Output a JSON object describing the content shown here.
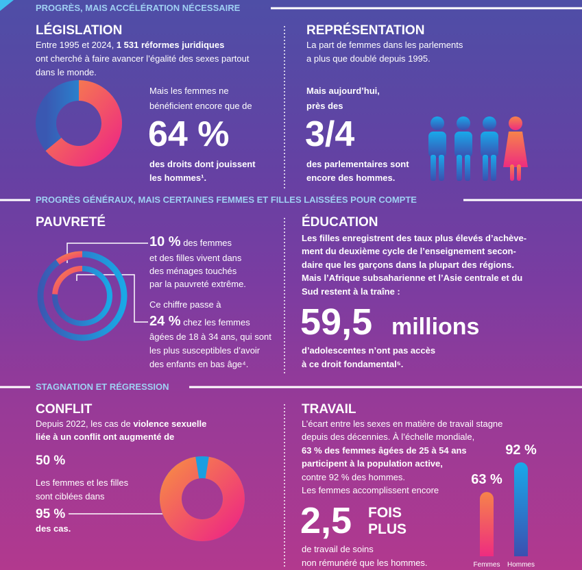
{
  "sections": [
    {
      "heading": "PROGRÈS, MAIS ACCÉLÉRATION NÉCESSAIRE"
    },
    {
      "heading": "PROGRÈS GÉNÉRAUX, MAIS CERTAINES FEMMES ET FILLES LAISSÉES POUR COMPTE"
    },
    {
      "heading": "STAGNATION ET RÉGRESSION"
    }
  ],
  "legislation": {
    "title": "LÉGISLATION",
    "intro": [
      "Entre 1995 et 2024, ",
      "1 531 réformes juridiques",
      "ont cherché à faire avancer l’égalité des sexes partout",
      "dans le monde."
    ],
    "lead": [
      "Mais les femmes ne",
      "bénéficient encore que de"
    ],
    "share": {
      "value": 64,
      "label": "64 %"
    },
    "tail": [
      "des droits dont jouissent",
      "les hommes¹."
    ]
  },
  "representation": {
    "title": "REPRÉSENTATION",
    "intro": [
      "La part de femmes dans les parlements",
      "a plus que doublé depuis 1995."
    ],
    "lead": [
      "Mais aujourd’hui,",
      "près des"
    ],
    "figure": "3/4",
    "tail": [
      "des parlementaires sont",
      "encore des hommes."
    ]
  },
  "poverty": {
    "title": "PAUVRETÉ",
    "rate_extreme": {
      "value": 10,
      "label": "10 %"
    },
    "text_1": [
      " des femmes",
      "et des filles vivent dans",
      "des ménages touchés",
      "par la pauvreté extrême."
    ],
    "transition": "Ce chiffre passe à",
    "rate_young": {
      "value": 24,
      "label": "24 %"
    },
    "text_2": [
      " chez les femmes",
      "âgées de 18 à 34 ans, qui sont",
      "les plus susceptibles d’avoir",
      "des enfants en bas âge⁴."
    ]
  },
  "education": {
    "title": "ÉDUCATION",
    "body": [
      "Les filles enregistrent des taux plus élevés d’achève-",
      "ment du deuxième cycle de l’enseignement secon-",
      "daire que les garçons dans la plupart des régions.",
      "Mais l’Afrique subsaharienne et l’Asie centrale et du",
      "Sud restent à la traîne :"
    ],
    "figure": "59,5",
    "unit": "millions",
    "tail": [
      "d’adolescentes n’ont pas accès",
      "à ce droit fondamental⁵."
    ]
  },
  "conflict": {
    "title": "CONFLIT",
    "intro": [
      "Depuis 2022, les cas de ",
      "violence sexuelle",
      "liée à un conflit ont augmenté de"
    ],
    "increase": {
      "value": 50,
      "label": "50 %"
    },
    "lead": [
      "Les femmes et les filles",
      "sont ciblées dans"
    ],
    "share": {
      "value": 95,
      "label": "95 %"
    },
    "tail": "des cas."
  },
  "work": {
    "title": "TRAVAIL",
    "body": [
      "L’écart entre les sexes en matière de travail stagne",
      "depuis des décennies. À l’échelle mondiale,",
      "63 % des femmes âgées de 25 à 54 ans",
      "participent à la population active,",
      "contre 92 % des hommes.",
      "Les femmes accomplissent encore"
    ],
    "figure": "2,5",
    "figure_unit": [
      "FOIS",
      "PLUS"
    ],
    "tail": [
      "de travail de soins",
      "non rémunéré que les hommes."
    ],
    "ylim": [
      0,
      100
    ],
    "bars": [
      {
        "name": "Femmes",
        "value": 63,
        "label": "63 %"
      },
      {
        "name": "Hommes",
        "value": 92,
        "label": "92 %"
      }
    ]
  }
}
